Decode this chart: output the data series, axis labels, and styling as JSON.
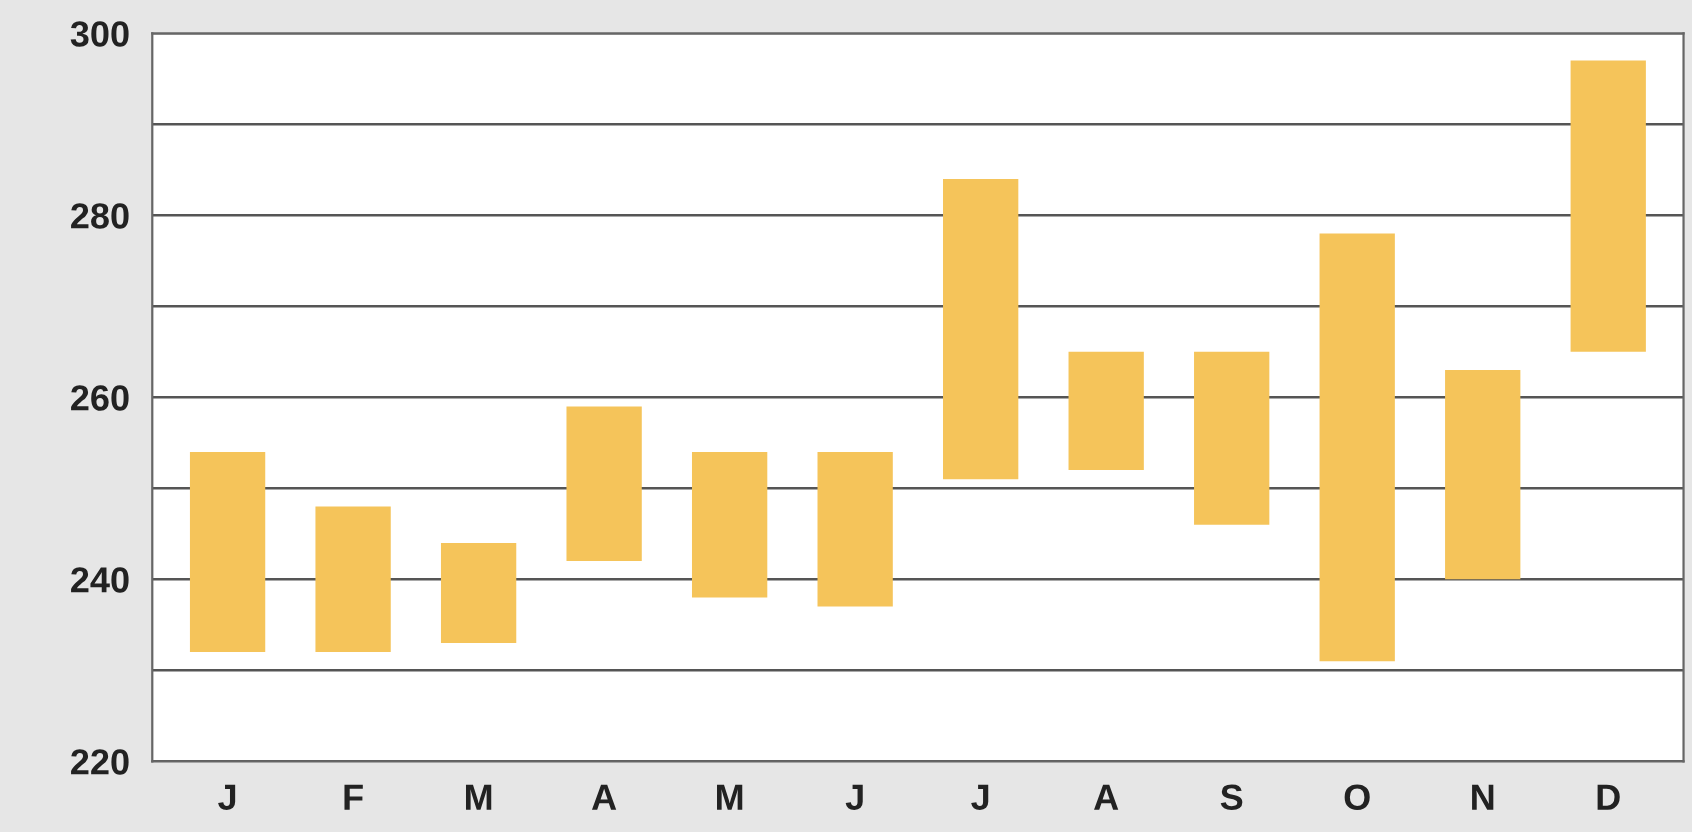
{
  "chart_data": {
    "type": "bar",
    "categories": [
      "J",
      "F",
      "M",
      "A",
      "M",
      "J",
      "J",
      "A",
      "S",
      "O",
      "N",
      "D"
    ],
    "base": [
      232,
      232,
      233,
      242,
      238,
      237,
      251,
      252,
      246,
      231,
      240,
      265
    ],
    "values": [
      22,
      16,
      11,
      17,
      16,
      17,
      33,
      13,
      19,
      47,
      23,
      32
    ],
    "color": "#f5c45a",
    "ylim": [
      220,
      300
    ],
    "yticks": [
      220,
      {
        "value": 230,
        "label": null
      },
      240,
      {
        "value": 250,
        "label": null
      },
      260,
      {
        "value": 270,
        "label": null
      },
      280,
      {
        "value": 290,
        "label": null
      },
      300
    ],
    "grid": "y"
  }
}
